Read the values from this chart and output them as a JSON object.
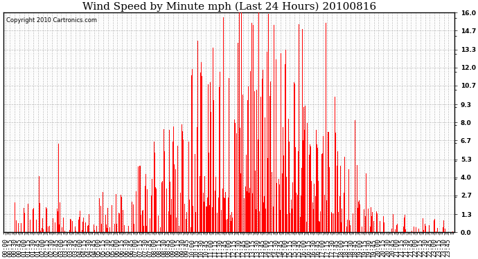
{
  "title": "Wind Speed by Minute mph (Last 24 Hours) 20100816",
  "copyright_text": "Copyright 2010 Cartronics.com",
  "yticks": [
    0.0,
    1.3,
    2.7,
    4.0,
    5.3,
    6.7,
    8.0,
    9.3,
    10.7,
    12.0,
    13.3,
    14.7,
    16.0
  ],
  "ylim": [
    0.0,
    16.0
  ],
  "bar_color": "#ff0000",
  "background_color": "#ffffff",
  "grid_color": "#bbbbbb",
  "title_fontsize": 11,
  "copyright_fontsize": 6,
  "tick_fontsize": 6.5,
  "num_minutes": 1440,
  "figwidth": 6.9,
  "figheight": 3.75,
  "dpi": 100
}
